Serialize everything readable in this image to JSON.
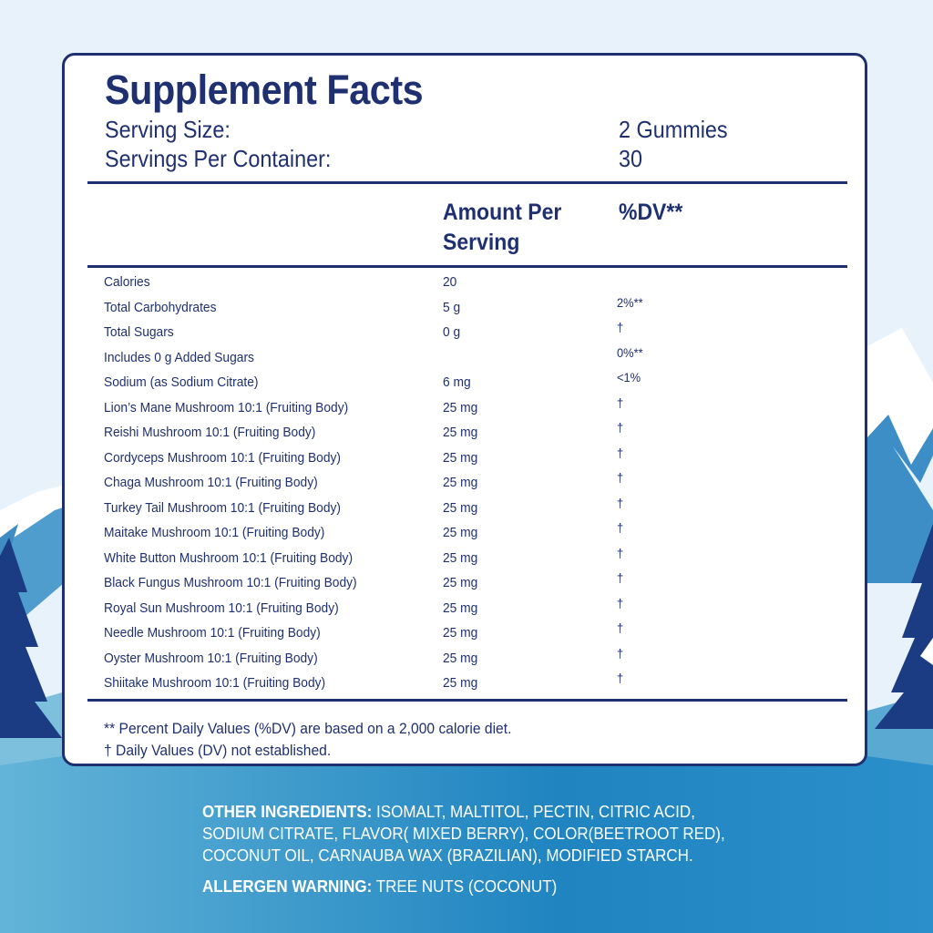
{
  "facts": {
    "title": "Supplement Facts",
    "serving_size_label": "Serving Size:",
    "serving_size_value": "2 Gummies",
    "servings_label": "Servings Per Container:",
    "servings_value": "30",
    "col_amount_line1": "Amount Per",
    "col_amount_line2": "Serving",
    "col_dv": "%DV**",
    "rows": [
      {
        "name": "Calories",
        "amount": "20",
        "dv": ""
      },
      {
        "name": "Total Carbohydrates",
        "amount": "5 g",
        "dv": "2%**"
      },
      {
        "name": "Total Sugars",
        "amount": "0 g",
        "dv": "†"
      },
      {
        "name": "Includes 0 g Added Sugars",
        "amount": "",
        "dv": "0%**"
      },
      {
        "name": "Sodium (as Sodium Citrate)",
        "amount": "6 mg",
        "dv": "<1%"
      },
      {
        "name": "Lion’s Mane Mushroom 10:1 (Fruiting Body)",
        "amount": "25 mg",
        "dv": "†"
      },
      {
        "name": "Reishi Mushroom 10:1 (Fruiting Body)",
        "amount": "25 mg",
        "dv": "†"
      },
      {
        "name": "Cordyceps Mushroom 10:1 (Fruiting Body)",
        "amount": "25 mg",
        "dv": "†"
      },
      {
        "name": "Chaga Mushroom 10:1 (Fruiting Body)",
        "amount": "25 mg",
        "dv": "†"
      },
      {
        "name": "Turkey Tail Mushroom 10:1 (Fruiting Body)",
        "amount": "25 mg",
        "dv": "†"
      },
      {
        "name": "Maitake Mushroom 10:1 (Fruiting Body)",
        "amount": "25 mg",
        "dv": "†"
      },
      {
        "name": "White Button Mushroom 10:1 (Fruiting Body)",
        "amount": "25 mg",
        "dv": "†"
      },
      {
        "name": "Black Fungus Mushroom 10:1 (Fruiting Body)",
        "amount": "25 mg",
        "dv": "†"
      },
      {
        "name": "Royal Sun Mushroom 10:1 (Fruiting Body)",
        "amount": "25 mg",
        "dv": "†"
      },
      {
        "name": "Needle Mushroom 10:1 (Fruiting Body)",
        "amount": "25 mg",
        "dv": "†"
      },
      {
        "name": "Oyster Mushroom 10:1 (Fruiting Body)",
        "amount": "25 mg",
        "dv": "†"
      },
      {
        "name": "Shiitake Mushroom 10:1 (Fruiting Body)",
        "amount": "25 mg",
        "dv": "†"
      }
    ],
    "footnote_1": "** Percent Daily Values (%DV) are based on a 2,000 calorie diet.",
    "footnote_2": "† Daily Values (DV) not established."
  },
  "ingredients": {
    "label": "OTHER INGREDIENTS:",
    "text": "ISOMALT, MALTITOL, PECTIN, CITRIC ACID, SODIUM CITRATE, FLAVOR( MIXED BERRY), COLOR(BEETROOT RED), COCONUT OIL, CARNAUBA WAX (BRAZILIAN), MODIFIED STARCH."
  },
  "allergen": {
    "label": "ALLERGEN WARNING:",
    "text": "TREE NUTS (COCONUT)"
  },
  "colors": {
    "navy": "#1f3070",
    "sky": "#e7f1fa",
    "mountain_blue": "#2f7bb6",
    "tree_navy": "#1b3b82"
  }
}
